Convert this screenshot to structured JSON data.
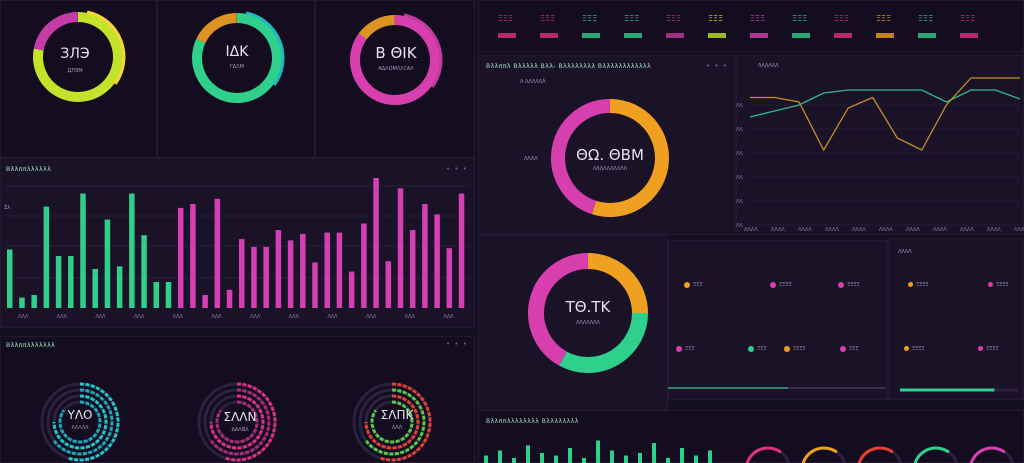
{
  "top_gauges": [
    {
      "value": "ЗЛЭ",
      "sub": "ДЛЭМ",
      "colors": [
        "#c3e32a",
        "#f5d33a",
        "#d63fb3"
      ],
      "fill": 0.78
    },
    {
      "value": "ΙΔΚ",
      "sub": "ΓΔΛΜ",
      "colors": [
        "#2fd08c",
        "#1fb8c0",
        "#f0a020"
      ],
      "fill": 0.82
    },
    {
      "value": "Β ΘΙΚ",
      "sub": "ΑΔΛΟΜΛΛΞΑΛ",
      "colors": [
        "#d83fae",
        "#c03c9c",
        "#f0a020"
      ],
      "fill": 0.85
    }
  ],
  "bar_panel": {
    "title": "Βλλππλλλλλλ",
    "dots": "• • •",
    "y_label": "Σλ",
    "bars": [
      0.45,
      0.08,
      0.1,
      0.78,
      0.4,
      0.4,
      0.88,
      0.3,
      0.68,
      0.32,
      0.88,
      0.56,
      0.2,
      0.2,
      0.77,
      0.8,
      0.1,
      0.84,
      0.14,
      0.53,
      0.47,
      0.47,
      0.6,
      0.52,
      0.57,
      0.35,
      0.58,
      0.58,
      0.28,
      0.65,
      1.0,
      0.36,
      0.92,
      0.6,
      0.8,
      0.72,
      0.46,
      0.88
    ],
    "x_ticks": [
      "ΛΛΛ",
      "ΛΛΛ",
      "ΛΛΛ",
      "ΛΛΛ",
      "ΛΛΛ",
      "ΛΛΛ",
      "ΛΛΛ",
      "ΛΛΛ",
      "ΛΛΛ",
      "ΛΛΛ",
      "ΛΛΛ",
      "ΛΛΛ"
    ]
  },
  "bottom_panel": {
    "title": "Βλλππλλλλλλλ",
    "dots": "• • •",
    "gauges": [
      {
        "value": "ΥΛΟ",
        "sub": "ΛΛΛΛΛ",
        "colors": [
          "#1fc8c8",
          "#18a8b8"
        ]
      },
      {
        "value": "ΣΛΛΝ",
        "sub": "ΔΑΛΒΛ",
        "colors": [
          "#e0307f",
          "#b0287c"
        ]
      },
      {
        "value": "ΣΛΠΚ",
        "sub": "ΛΛΛ",
        "colors": [
          "#e84030",
          "#58c848"
        ]
      }
    ]
  },
  "top_strip": {
    "items": [
      "ΞΞΞ",
      "ΞΞΞ",
      "ΞΞΞ",
      "ΞΞΞ",
      "ΞΞΞ",
      "ΞΞΞ",
      "ΞΞΞ",
      "ΞΞΞ",
      "ΞΞΞ",
      "ΞΞΞ",
      "ΞΞΞ",
      "ΞΞΞ"
    ],
    "colors": [
      "#e0307f",
      "#e0307f",
      "#2fd08c",
      "#2fd08c",
      "#c03c9c",
      "#c3e32a",
      "#d83fae",
      "#2fd08c",
      "#e0307f",
      "#f0a020",
      "#2fd08c",
      "#e0307f"
    ]
  },
  "donut_main": {
    "title": "Βλλππλ Βλλλλλ Βλλ- Βλλλλλλλλ Βλλλλλλλλλλλλ",
    "dots": "• • •",
    "label": "Λ ΛΛΛΛΛΛ",
    "value": "ΘΩ. ΘΒΜ",
    "sub": "ΛΛΛΛΛΛΛΛΛΛ",
    "side_label": "ΛΛΛΛ",
    "segments": [
      {
        "color": "#f0a020",
        "value": 0.55
      },
      {
        "color": "#d83fae",
        "value": 0.45
      }
    ]
  },
  "line_panel": {
    "title": "ΛΛΛΛΛΛ",
    "y_ticks": [
      "ΛΛ",
      "ΛΛ",
      "ΛΛ",
      "ΛΛ",
      "ΛΛ",
      "ΛΛ"
    ],
    "x_ticks": [
      "ΛΛΛΛ",
      "ΛΛΛΛ",
      "ΛΛΛΛ",
      "ΛΛΛΛ",
      "ΛΛΛΛ",
      "ΛΛΛΛ",
      "ΛΛΛΛ",
      "ΛΛΛΛ",
      "ΛΛΛΛ",
      "ΛΛΛΛ",
      "ΛΛΛΛ"
    ],
    "series": [
      {
        "color": "#2fb890",
        "values": [
          0.72,
          0.76,
          0.8,
          0.88,
          0.9,
          0.9,
          0.9,
          0.9,
          0.82,
          0.9,
          0.9,
          0.84
        ]
      },
      {
        "color": "#c88a28",
        "values": [
          0.85,
          0.85,
          0.82,
          0.5,
          0.78,
          0.85,
          0.58,
          0.5,
          0.8,
          0.98,
          0.98,
          0.98
        ]
      }
    ]
  },
  "donut_second": {
    "value": "ΤΘ.ΤΚ",
    "sub": "ΛΛΛΛΛΛΛ",
    "segments": [
      {
        "color": "#f0a020",
        "value": 0.25
      },
      {
        "color": "#2fd08c",
        "value": 0.33
      },
      {
        "color": "#d83fae",
        "value": 0.42
      }
    ]
  },
  "legend_panel": {
    "items": [
      {
        "label": "ΞΞΞ",
        "color": "#f0a020"
      },
      {
        "label": "ΞΞΞΞ",
        "color": "#d83fae"
      },
      {
        "label": "ΞΞΞΞ",
        "color": "#d83fae"
      },
      {
        "label": "ΞΞΞ",
        "color": "#d83fae"
      },
      {
        "label": "ΞΞΞ",
        "color": "#2fd08c"
      },
      {
        "label": "ΞΞΞΞ",
        "color": "#f0a020"
      },
      {
        "label": "ΞΞΞ",
        "color": "#d83fae"
      }
    ]
  },
  "right_panel": {
    "title": "ΛΛΛΛ",
    "items": [
      {
        "label": "ΞΞΞΞ",
        "color": "#f0a020"
      },
      {
        "label": "ΞΞΞΞ",
        "color": "#d83fae"
      },
      {
        "label": "ΞΞΞΞ",
        "color": "#f0a020"
      },
      {
        "label": "ΞΞΞΞ",
        "color": "#d83fae"
      }
    ],
    "progress": 0.8
  },
  "bottom_right": {
    "title": "Βλλππλλλλλλλλ Βλλλλλλλλ",
    "bars": [
      0.3,
      0.5,
      0.2,
      0.7,
      0.4,
      0.3,
      0.6,
      0.2,
      0.9,
      0.5,
      0.3,
      0.4,
      0.8,
      0.2,
      0.6,
      0.3,
      0.5
    ],
    "gauges": [
      "#e0307f",
      "#f0a020",
      "#e84030",
      "#2fd08c",
      "#d83fae"
    ]
  }
}
